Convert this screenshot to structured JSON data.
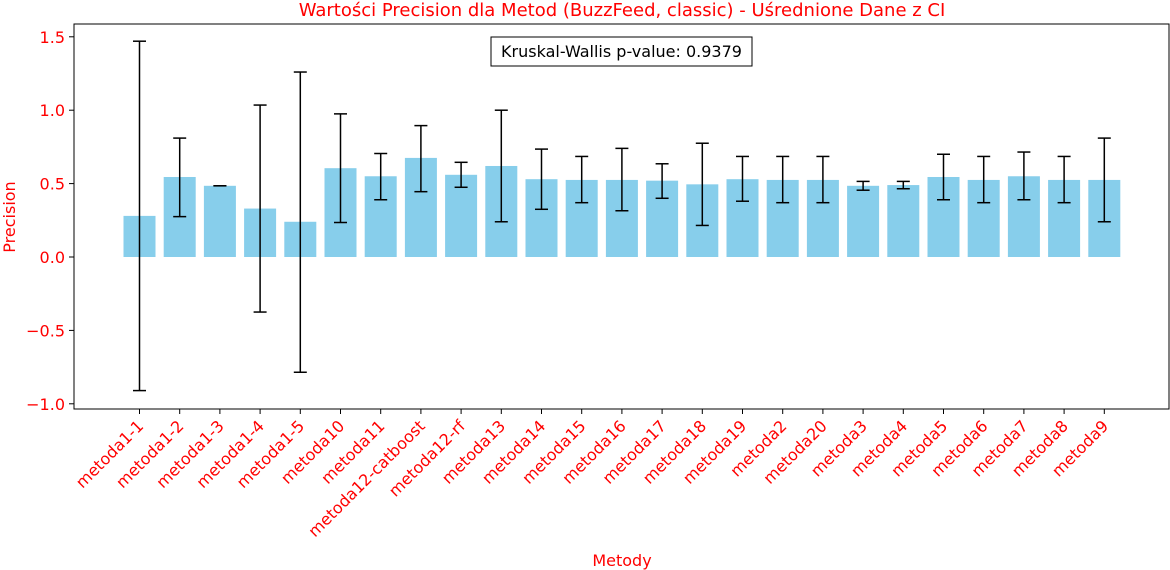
{
  "chart_data": {
    "type": "bar",
    "title": "Wartości Precision dla Metod (BuzzFeed, classic) - Uśrednione Dane z CI",
    "xlabel": "Metody",
    "ylabel": "Precision",
    "ylim": [
      -1.04,
      1.59
    ],
    "yticks": [
      -1.0,
      -0.5,
      0.0,
      0.5,
      1.0,
      1.5
    ],
    "ytick_labels": [
      "−1.0",
      "−0.5",
      "0.0",
      "0.5",
      "1.0",
      "1.5"
    ],
    "grid": false,
    "categories": [
      "metoda1-1",
      "metoda1-2",
      "metoda1-3",
      "metoda1-4",
      "metoda1-5",
      "metoda10",
      "metoda11",
      "metoda12-catboost",
      "metoda12-rf",
      "metoda13",
      "metoda14",
      "metoda15",
      "metoda16",
      "metoda17",
      "metoda18",
      "metoda19",
      "metoda2",
      "metoda20",
      "metoda3",
      "metoda4",
      "metoda5",
      "metoda6",
      "metoda7",
      "metoda8",
      "metoda9"
    ],
    "values": [
      0.28,
      0.545,
      0.485,
      0.33,
      0.24,
      0.605,
      0.55,
      0.675,
      0.56,
      0.62,
      0.53,
      0.525,
      0.525,
      0.52,
      0.495,
      0.53,
      0.525,
      0.525,
      0.485,
      0.49,
      0.545,
      0.525,
      0.55,
      0.525,
      0.525
    ],
    "ci_lower": [
      -0.91,
      0.275,
      0.485,
      -0.375,
      -0.785,
      0.235,
      0.39,
      0.445,
      0.475,
      0.24,
      0.325,
      0.37,
      0.315,
      0.4,
      0.215,
      0.38,
      0.37,
      0.37,
      0.455,
      0.465,
      0.39,
      0.37,
      0.39,
      0.37,
      0.24
    ],
    "ci_upper": [
      1.47,
      0.81,
      0.485,
      1.035,
      1.26,
      0.975,
      0.705,
      0.895,
      0.645,
      1.0,
      0.735,
      0.685,
      0.74,
      0.635,
      0.775,
      0.685,
      0.685,
      0.685,
      0.515,
      0.515,
      0.7,
      0.685,
      0.715,
      0.685,
      0.81
    ],
    "bar_color": "#87ceeb",
    "errorbar_color": "#000000",
    "label_color": "#ff0000",
    "annotation": "Kruskal-Wallis p-value: 0.9379"
  }
}
